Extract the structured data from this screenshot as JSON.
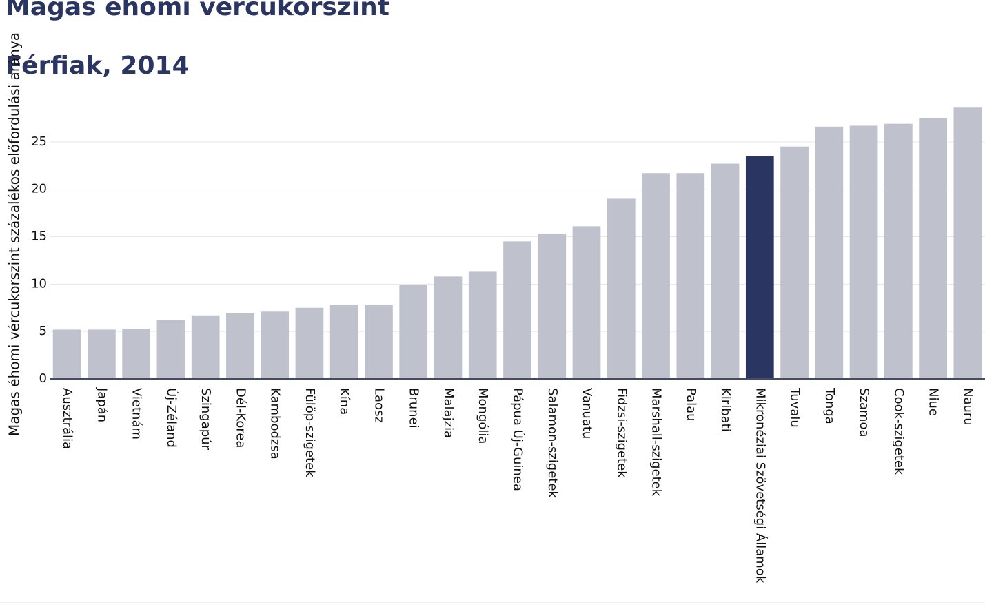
{
  "chart_data": {
    "type": "bar",
    "title": "Magas éhomi vércukorszint",
    "subtitle": "Férfiak, 2014",
    "y_label": "Magas éhomi vércukorszint százalékos előfordulási aránya",
    "categories": [
      "Ausztrália",
      "Japán",
      "Vietnám",
      "Új-Zéland",
      "Szingapúr",
      "Dél-Korea",
      "Kambodzsa",
      "Fülöp-szigetek",
      "Kína",
      "Laosz",
      "Brunei",
      "Malajzia",
      "Mongólia",
      "Pápua Új-Guinea",
      "Salamon-szigetek",
      "Vanuatu",
      "Fidzsi-szigetek",
      "Marshall-szigetek",
      "Palau",
      "Kiribati",
      "Mikronéziai Szövetségi Államok",
      "Tuvalu",
      "Tonga",
      "Szamoa",
      "Cook-szigetek",
      "Niue",
      "Nauru"
    ],
    "values": [
      5.2,
      5.2,
      5.3,
      6.2,
      6.7,
      6.9,
      7.1,
      7.5,
      7.8,
      7.8,
      9.9,
      10.8,
      11.3,
      14.5,
      15.3,
      16.1,
      19.0,
      21.7,
      21.7,
      22.7,
      23.5,
      24.5,
      26.6,
      26.7,
      26.9,
      27.5,
      28.6
    ],
    "colors": [
      "#bfc1cd",
      "#bfc1cd",
      "#bfc1cd",
      "#bfc1cd",
      "#bfc1cd",
      "#bfc1cd",
      "#bfc1cd",
      "#bfc1cd",
      "#bfc1cd",
      "#bfc1cd",
      "#bfc1cd",
      "#bfc1cd",
      "#bfc1cd",
      "#bfc1cd",
      "#bfc1cd",
      "#bfc1cd",
      "#bfc1cd",
      "#bfc1cd",
      "#bfc1cd",
      "#bfc1cd",
      "#2b3561",
      "#bfc1cd",
      "#bfc1cd",
      "#bfc1cd",
      "#bfc1cd",
      "#bfc1cd",
      "#bfc1cd"
    ],
    "ylim": [
      0,
      30
    ],
    "yticks": [
      0,
      5,
      10,
      15,
      20,
      25
    ],
    "grid": true
  }
}
